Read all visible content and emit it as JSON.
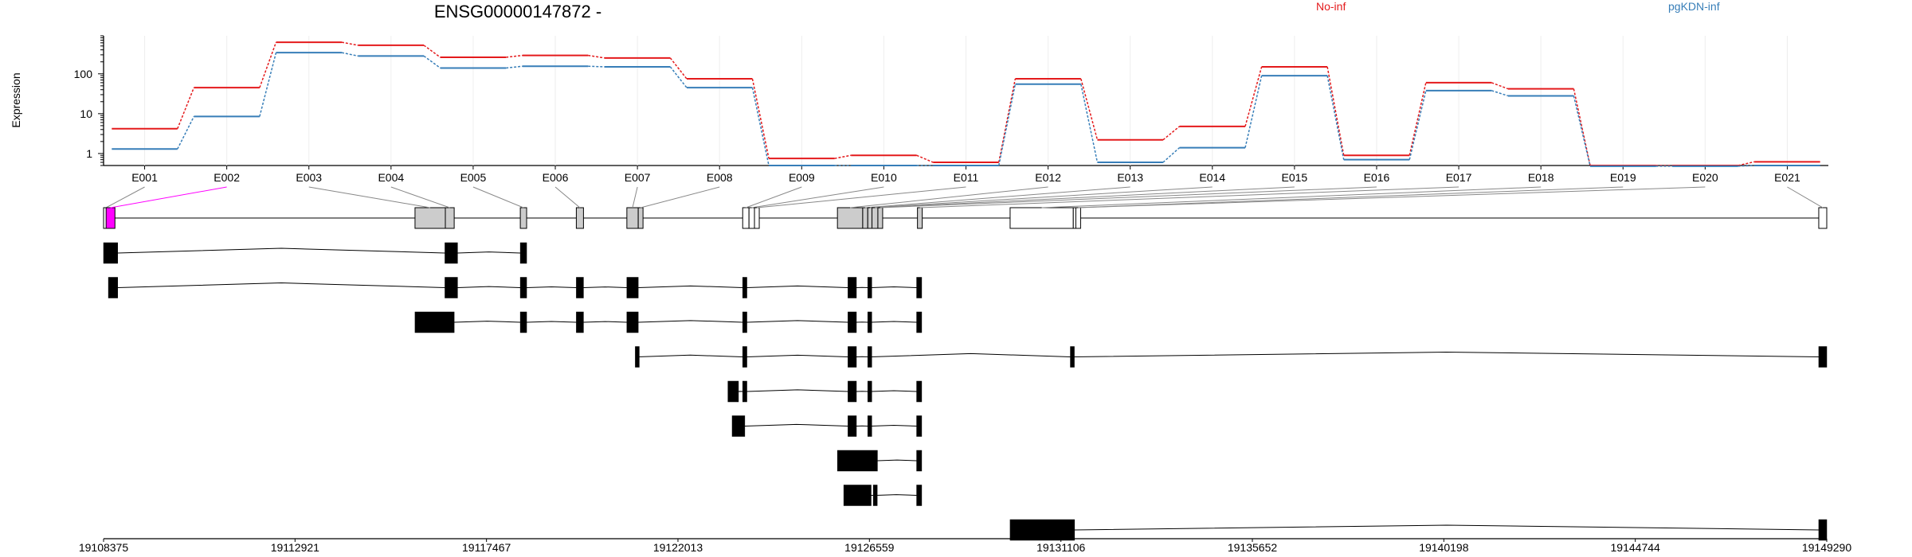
{
  "chart_data": {
    "type": "line",
    "title": "ENSG00000147872 -",
    "ylabel": "Expression",
    "yscale": "log",
    "yticks": [
      "1",
      "10",
      "100"
    ],
    "ylim": [
      0.5,
      900
    ],
    "legend_position": "top-right",
    "colors": {
      "No-inf": "#e41a1c",
      "pgKDN-inf": "#377eb8",
      "highlight": "#ff00ff"
    },
    "series": [
      {
        "name": "No-inf",
        "color": "#e41a1c",
        "values": [
          4.2,
          45,
          620,
          520,
          260,
          290,
          250,
          75,
          0.75,
          0.9,
          0.6,
          75,
          2.2,
          4.8,
          150,
          0.9,
          60,
          42,
          0.5,
          0.5,
          0.62
        ]
      },
      {
        "name": "pgKDN-inf",
        "color": "#377eb8",
        "values": [
          1.3,
          8.5,
          340,
          280,
          140,
          155,
          150,
          45,
          0.5,
          0.5,
          0.5,
          55,
          0.6,
          1.4,
          90,
          0.7,
          38,
          28,
          0.48,
          0.48,
          0.5
        ]
      }
    ],
    "exons": [
      {
        "id": "E001",
        "start": 19108375,
        "end": 19108435
      },
      {
        "id": "E002",
        "start": 19108435,
        "end": 19108645
      },
      {
        "id": "E003",
        "start": 19115770,
        "end": 19116490
      },
      {
        "id": "E004",
        "start": 19116490,
        "end": 19116700
      },
      {
        "id": "E005",
        "start": 19118270,
        "end": 19118420
      },
      {
        "id": "E006",
        "start": 19119600,
        "end": 19119770
      },
      {
        "id": "E007",
        "start": 19120800,
        "end": 19121070
      },
      {
        "id": "E008",
        "start": 19121070,
        "end": 19121130
      },
      {
        "id": "E009",
        "start": 19123550,
        "end": 19123700
      },
      {
        "id": "E010",
        "start": 19123700,
        "end": 19123830
      },
      {
        "id": "E011",
        "start": 19123830,
        "end": 19123900
      },
      {
        "id": "E012",
        "start": 19125800,
        "end": 19126400
      },
      {
        "id": "E013",
        "start": 19126400,
        "end": 19126520
      },
      {
        "id": "E014",
        "start": 19126520,
        "end": 19126620
      },
      {
        "id": "E015",
        "start": 19126620,
        "end": 19126760
      },
      {
        "id": "E016",
        "start": 19126760,
        "end": 19126800
      },
      {
        "id": "E017",
        "start": 19127700,
        "end": 19127800
      },
      {
        "id": "E018",
        "start": 19129900,
        "end": 19131400
      },
      {
        "id": "E019",
        "start": 19131400,
        "end": 19131460
      },
      {
        "id": "E020",
        "start": 19131460,
        "end": 19131510
      },
      {
        "id": "E021",
        "start": 19149100,
        "end": 19149290
      }
    ],
    "genomic_range": [
      19108375,
      19149290
    ],
    "genomic_ticks": [
      "19108375",
      "19112921",
      "19117467",
      "19122013",
      "19126559",
      "19131106",
      "19135652",
      "19140198",
      "19144744",
      "19149290"
    ],
    "transcripts": [
      {
        "exons": [
          [
            19108375,
            19108710
          ],
          [
            19116480,
            19116780
          ],
          [
            19118270,
            19118420
          ]
        ]
      },
      {
        "exons": [
          [
            19108490,
            19108710
          ],
          [
            19116480,
            19116780
          ],
          [
            19118270,
            19118420
          ],
          [
            19119600,
            19119770
          ],
          [
            19120800,
            19121070
          ],
          [
            19123550,
            19123650
          ],
          [
            19126050,
            19126250
          ],
          [
            19126520,
            19126600
          ],
          [
            19127680,
            19127800
          ]
        ]
      },
      {
        "exons": [
          [
            19115770,
            19116700
          ],
          [
            19118270,
            19118420
          ],
          [
            19119600,
            19119770
          ],
          [
            19120800,
            19121070
          ],
          [
            19123550,
            19123650
          ],
          [
            19126050,
            19126250
          ],
          [
            19126520,
            19126600
          ],
          [
            19127680,
            19127800
          ]
        ]
      },
      {
        "exons": [
          [
            19121000,
            19121060
          ],
          [
            19123550,
            19123650
          ],
          [
            19126050,
            19126250
          ],
          [
            19126520,
            19126600
          ],
          [
            19131330,
            19131420
          ],
          [
            19149100,
            19149290
          ]
        ]
      },
      {
        "exons": [
          [
            19123200,
            19123450
          ],
          [
            19123550,
            19123650
          ],
          [
            19126050,
            19126250
          ],
          [
            19126520,
            19126600
          ],
          [
            19127680,
            19127800
          ]
        ]
      },
      {
        "exons": [
          [
            19123300,
            19123600
          ],
          [
            19126050,
            19126250
          ],
          [
            19126520,
            19126600
          ],
          [
            19127680,
            19127800
          ]
        ]
      },
      {
        "exons": [
          [
            19125800,
            19126750
          ],
          [
            19127680,
            19127800
          ]
        ]
      },
      {
        "exons": [
          [
            19125950,
            19126600
          ],
          [
            19126650,
            19126720
          ],
          [
            19127680,
            19127800
          ]
        ]
      },
      {
        "exons": [
          [
            19129900,
            19131430
          ],
          [
            19149100,
            19149290
          ]
        ]
      }
    ]
  }
}
